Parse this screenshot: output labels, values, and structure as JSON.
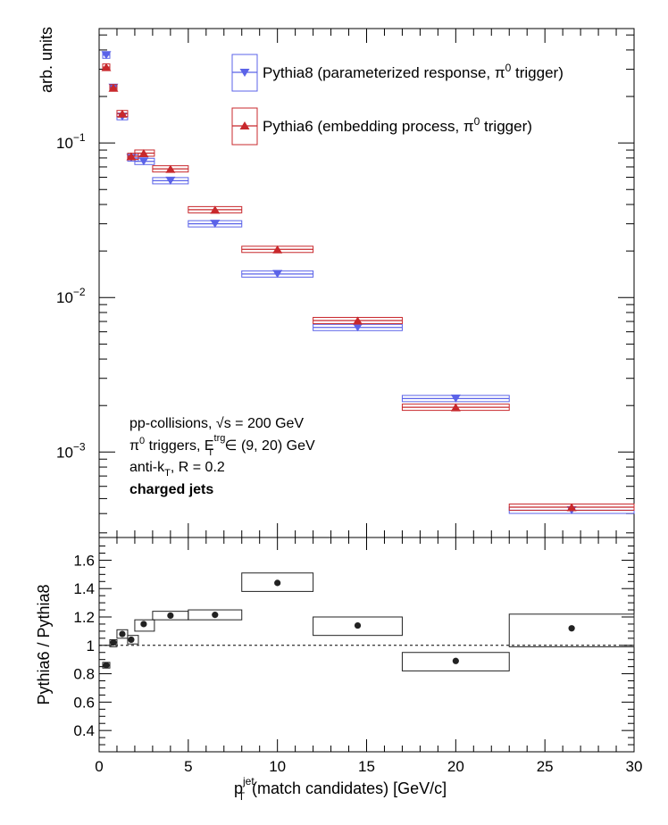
{
  "chart_data": [
    {
      "type": "scatter",
      "ylabel": "arb. units",
      "yscale": "log",
      "ylim": [
        0.00028,
        0.55
      ],
      "xlim": [
        0,
        30
      ],
      "yticks": [
        {
          "value": 0.1,
          "base": "10",
          "exp": "−1"
        },
        {
          "value": 0.01,
          "base": "10",
          "exp": "−2"
        },
        {
          "value": 0.001,
          "base": "10",
          "exp": "−3"
        }
      ],
      "legend": {
        "placement": "top-right",
        "entries": [
          {
            "series": "pythia8",
            "text": "Pythia8 (parameterized response, π",
            "sup": "0",
            "tail": " trigger)"
          },
          {
            "series": "pythia6",
            "text": "Pythia6 (embedding process, π",
            "sup": "0",
            "tail": " trigger)"
          }
        ]
      },
      "annotations": {
        "line1": "pp-collisions, √s = 200 GeV",
        "line2_pre": "π",
        "line2_sup": "0",
        "line2_mid": " triggers, E",
        "line2_sub": "T",
        "line2_sup2": "trg",
        "line2_post": " ∈ (9, 20) GeV",
        "line3_pre": "anti-k",
        "line3_sub": "T",
        "line3_post": ", R = 0.2",
        "line4": "charged jets"
      },
      "series": [
        {
          "name": "Pythia8 (parameterized response, π0 trigger)",
          "color": "#5b63e8",
          "marker": "triangle-down",
          "points": [
            {
              "x": 0.4,
              "y": 0.37,
              "xlo": 0.2,
              "xhi": 0.6
            },
            {
              "x": 0.8,
              "y": 0.228,
              "xlo": 0.6,
              "xhi": 1.0
            },
            {
              "x": 1.3,
              "y": 0.148,
              "xlo": 1.0,
              "xhi": 1.6
            },
            {
              "x": 1.8,
              "y": 0.08,
              "xlo": 1.6,
              "xhi": 2.2
            },
            {
              "x": 2.5,
              "y": 0.076,
              "xlo": 2.0,
              "xhi": 3.1
            },
            {
              "x": 4.0,
              "y": 0.057,
              "xlo": 3.0,
              "xhi": 5.0
            },
            {
              "x": 6.5,
              "y": 0.03,
              "xlo": 5.0,
              "xhi": 8.0
            },
            {
              "x": 10.0,
              "y": 0.0142,
              "xlo": 8.0,
              "xhi": 12.0
            },
            {
              "x": 14.5,
              "y": 0.0064,
              "xlo": 12.0,
              "xhi": 17.0
            },
            {
              "x": 20.0,
              "y": 0.00222,
              "xlo": 17.0,
              "xhi": 23.0
            },
            {
              "x": 26.5,
              "y": 0.00042,
              "xlo": 23.0,
              "xhi": 30.0
            }
          ]
        },
        {
          "name": "Pythia6 (embedding process, π0 trigger)",
          "color": "#c8282c",
          "marker": "triangle-up",
          "points": [
            {
              "x": 0.4,
              "y": 0.31,
              "xlo": 0.2,
              "xhi": 0.6
            },
            {
              "x": 0.8,
              "y": 0.228,
              "xlo": 0.6,
              "xhi": 1.0
            },
            {
              "x": 1.3,
              "y": 0.155,
              "xlo": 1.0,
              "xhi": 1.6
            },
            {
              "x": 1.8,
              "y": 0.082,
              "xlo": 1.6,
              "xhi": 2.2
            },
            {
              "x": 2.5,
              "y": 0.086,
              "xlo": 2.0,
              "xhi": 3.1
            },
            {
              "x": 4.0,
              "y": 0.068,
              "xlo": 3.0,
              "xhi": 5.0
            },
            {
              "x": 6.5,
              "y": 0.037,
              "xlo": 5.0,
              "xhi": 8.0
            },
            {
              "x": 10.0,
              "y": 0.0205,
              "xlo": 8.0,
              "xhi": 12.0
            },
            {
              "x": 14.5,
              "y": 0.0071,
              "xlo": 12.0,
              "xhi": 17.0
            },
            {
              "x": 20.0,
              "y": 0.00195,
              "xlo": 17.0,
              "xhi": 23.0
            },
            {
              "x": 26.5,
              "y": 0.00044,
              "xlo": 23.0,
              "xhi": 30.0
            }
          ]
        }
      ]
    },
    {
      "type": "scatter",
      "xlabel_pre": "p",
      "xlabel_sub": "T",
      "xlabel_sup": "jet",
      "xlabel_post": "(match candidates) [GeV/c]",
      "ylabel": "Pythia6 / Pythia8",
      "xlim": [
        0,
        30
      ],
      "ylim": [
        0.25,
        1.76
      ],
      "xticks": [
        "0",
        "5",
        "10",
        "15",
        "20",
        "25",
        "30"
      ],
      "yticks": [
        "0.4",
        "0.6",
        "0.8",
        "1",
        "1.2",
        "1.4",
        "1.6"
      ],
      "reference_line": 1.0,
      "series": [
        {
          "name": "",
          "color": "#222222",
          "points": [
            {
              "x": 0.4,
              "y": 0.86,
              "xlo": 0.2,
              "xhi": 0.6,
              "ylo": 0.84,
              "yhi": 0.88
            },
            {
              "x": 0.8,
              "y": 1.02,
              "xlo": 0.6,
              "xhi": 1.0,
              "ylo": 0.99,
              "yhi": 1.04
            },
            {
              "x": 1.3,
              "y": 1.08,
              "xlo": 1.0,
              "xhi": 1.6,
              "ylo": 1.05,
              "yhi": 1.11
            },
            {
              "x": 1.8,
              "y": 1.04,
              "xlo": 1.6,
              "xhi": 2.2,
              "ylo": 1.01,
              "yhi": 1.07
            },
            {
              "x": 2.5,
              "y": 1.15,
              "xlo": 2.0,
              "xhi": 3.1,
              "ylo": 1.1,
              "yhi": 1.18
            },
            {
              "x": 4.0,
              "y": 1.21,
              "xlo": 3.0,
              "xhi": 5.0,
              "ylo": 1.18,
              "yhi": 1.24
            },
            {
              "x": 6.5,
              "y": 1.215,
              "xlo": 5.0,
              "xhi": 8.0,
              "ylo": 1.18,
              "yhi": 1.25
            },
            {
              "x": 10.0,
              "y": 1.44,
              "xlo": 8.0,
              "xhi": 12.0,
              "ylo": 1.38,
              "yhi": 1.51
            },
            {
              "x": 14.5,
              "y": 1.14,
              "xlo": 12.0,
              "xhi": 17.0,
              "ylo": 1.07,
              "yhi": 1.2
            },
            {
              "x": 20.0,
              "y": 0.89,
              "xlo": 17.0,
              "xhi": 23.0,
              "ylo": 0.82,
              "yhi": 0.95
            },
            {
              "x": 26.5,
              "y": 1.12,
              "xlo": 23.0,
              "xhi": 30.0,
              "ylo": 0.99,
              "yhi": 1.22
            }
          ]
        }
      ]
    }
  ]
}
